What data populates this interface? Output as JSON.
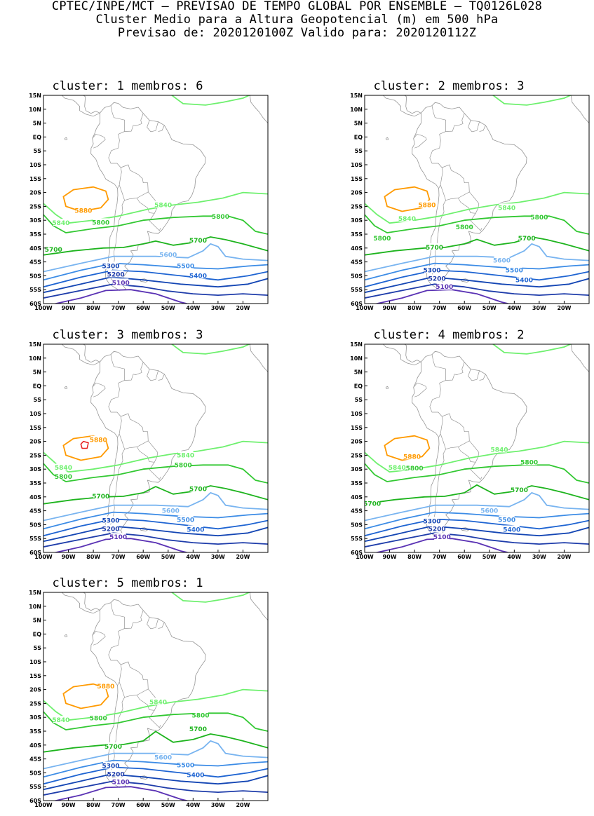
{
  "header": {
    "line1": "CPTEC/INPE/MCT – PREVISAO DE TEMPO GLOBAL POR ENSEMBLE – TQ0126L028",
    "line2": "Cluster Medio para a Altura Geopotencial (m) em 500 hPa",
    "line3": "Previsao de: 2020120100Z    Valido para: 2020120112Z"
  },
  "axes": {
    "lat_labels": [
      "15N",
      "10N",
      "5N",
      "EQ",
      "5S",
      "10S",
      "15S",
      "20S",
      "25S",
      "30S",
      "35S",
      "40S",
      "45S",
      "50S",
      "55S",
      "60S"
    ],
    "lon_labels": [
      "100W",
      "90W",
      "80W",
      "70W",
      "60W",
      "50W",
      "40W",
      "30W",
      "20W"
    ],
    "lat_range": [
      -60,
      15
    ],
    "lon_range": [
      -100,
      -10
    ]
  },
  "colors": {
    "c5880": "#ff9a00",
    "c5840": "#6ef06e",
    "c5800": "#32c832",
    "c5700": "#1eb41e",
    "c5600": "#78b4f0",
    "c5500": "#3c8ce6",
    "c5400": "#1e64d2",
    "c5300": "#1446b4",
    "c5200": "#1e3caa",
    "c5100": "#5a32b4",
    "inner": "#e61e1e",
    "land": "#969696"
  },
  "clusters": [
    {
      "title": "cluster: 1   membros: 6",
      "labels": [
        {
          "text": "5880",
          "lon": -84,
          "lat": -26.5,
          "c": "c5880"
        },
        {
          "text": "5840",
          "lon": -52,
          "lat": -24.5,
          "c": "c5840"
        },
        {
          "text": "5840",
          "lon": -93,
          "lat": -31,
          "c": "c5840"
        },
        {
          "text": "5800",
          "lon": -77,
          "lat": -30.8,
          "c": "c5800"
        },
        {
          "text": "5800",
          "lon": -29,
          "lat": -28.7,
          "c": "c5800"
        },
        {
          "text": "5700",
          "lon": -96,
          "lat": -40.5,
          "c": "c5700"
        },
        {
          "text": "5700",
          "lon": -38,
          "lat": -37.3,
          "c": "c5700"
        },
        {
          "text": "5600",
          "lon": -50,
          "lat": -42.5,
          "c": "c5600"
        },
        {
          "text": "5500",
          "lon": -43,
          "lat": -46.5,
          "c": "c5500"
        },
        {
          "text": "5400",
          "lon": -38,
          "lat": -50,
          "c": "c5400"
        },
        {
          "text": "5300",
          "lon": -73,
          "lat": -46.5,
          "c": "c5300"
        },
        {
          "text": "5200",
          "lon": -71,
          "lat": -49.5,
          "c": "c5200"
        },
        {
          "text": "5100",
          "lon": -69,
          "lat": -52.5,
          "c": "c5100"
        }
      ]
    },
    {
      "title": "cluster: 2   membros: 3",
      "labels": [
        {
          "text": "5880",
          "lon": -75,
          "lat": -24.5,
          "c": "c5880"
        },
        {
          "text": "5840",
          "lon": -43,
          "lat": -25.5,
          "c": "c5840"
        },
        {
          "text": "5840",
          "lon": -83,
          "lat": -29.5,
          "c": "c5840"
        },
        {
          "text": "5800",
          "lon": -93,
          "lat": -36.5,
          "c": "c5800"
        },
        {
          "text": "5800",
          "lon": -60,
          "lat": -32.5,
          "c": "c5800"
        },
        {
          "text": "5800",
          "lon": -30,
          "lat": -29,
          "c": "c5800"
        },
        {
          "text": "5700",
          "lon": -72,
          "lat": -39.8,
          "c": "c5700"
        },
        {
          "text": "5700",
          "lon": -35,
          "lat": -36.5,
          "c": "c5700"
        },
        {
          "text": "5600",
          "lon": -45,
          "lat": -44.5,
          "c": "c5600"
        },
        {
          "text": "5500",
          "lon": -40,
          "lat": -48,
          "c": "c5500"
        },
        {
          "text": "5400",
          "lon": -36,
          "lat": -51.5,
          "c": "c5400"
        },
        {
          "text": "5300",
          "lon": -73,
          "lat": -48,
          "c": "c5300"
        },
        {
          "text": "5200",
          "lon": -71,
          "lat": -51,
          "c": "c5200"
        },
        {
          "text": "5100",
          "lon": -68,
          "lat": -54,
          "c": "c5100"
        }
      ]
    },
    {
      "title": "cluster: 3   membros: 3",
      "labels": [
        {
          "text": "5880",
          "lon": -78,
          "lat": -19.5,
          "c": "c5880"
        },
        {
          "text": "5840",
          "lon": -43,
          "lat": -25,
          "c": "c5840"
        },
        {
          "text": "5840",
          "lon": -92,
          "lat": -29.5,
          "c": "c5840"
        },
        {
          "text": "5800",
          "lon": -92,
          "lat": -32.7,
          "c": "c5800"
        },
        {
          "text": "5800",
          "lon": -44,
          "lat": -28.5,
          "c": "c5800"
        },
        {
          "text": "5700",
          "lon": -77,
          "lat": -39.8,
          "c": "c5700"
        },
        {
          "text": "5700",
          "lon": -38,
          "lat": -37.2,
          "c": "c5700"
        },
        {
          "text": "5600",
          "lon": -49,
          "lat": -45,
          "c": "c5600"
        },
        {
          "text": "5500",
          "lon": -43,
          "lat": -48.3,
          "c": "c5500"
        },
        {
          "text": "5400",
          "lon": -39,
          "lat": -51.8,
          "c": "c5400"
        },
        {
          "text": "5300",
          "lon": -73,
          "lat": -48.5,
          "c": "c5300"
        },
        {
          "text": "5200",
          "lon": -73,
          "lat": -51.5,
          "c": "c5200"
        },
        {
          "text": "5100",
          "lon": -70,
          "lat": -54.5,
          "c": "c5100"
        }
      ]
    },
    {
      "title": "cluster: 4   membros: 2",
      "labels": [
        {
          "text": "5880",
          "lon": -81,
          "lat": -25.5,
          "c": "c5880"
        },
        {
          "text": "5840",
          "lon": -46,
          "lat": -23,
          "c": "c5840"
        },
        {
          "text": "5840",
          "lon": -87,
          "lat": -29.5,
          "c": "c5840"
        },
        {
          "text": "5800",
          "lon": -80,
          "lat": -29.7,
          "c": "c5800"
        },
        {
          "text": "5800",
          "lon": -34,
          "lat": -27.5,
          "c": "c5800"
        },
        {
          "text": "5700",
          "lon": -97,
          "lat": -42.5,
          "c": "c5700"
        },
        {
          "text": "5700",
          "lon": -38,
          "lat": -37.5,
          "c": "c5700"
        },
        {
          "text": "5600",
          "lon": -50,
          "lat": -45,
          "c": "c5600"
        },
        {
          "text": "5500",
          "lon": -43,
          "lat": -48.3,
          "c": "c5500"
        },
        {
          "text": "5400",
          "lon": -41,
          "lat": -51.8,
          "c": "c5400"
        },
        {
          "text": "5300",
          "lon": -73,
          "lat": -48.7,
          "c": "c5300"
        },
        {
          "text": "5200",
          "lon": -71,
          "lat": -51.5,
          "c": "c5200"
        },
        {
          "text": "5100",
          "lon": -69,
          "lat": -54.5,
          "c": "c5100"
        }
      ]
    },
    {
      "title": "cluster: 5   membros: 1",
      "labels": [
        {
          "text": "5880",
          "lon": -75,
          "lat": -18.8,
          "c": "c5880"
        },
        {
          "text": "5840",
          "lon": -54,
          "lat": -24.5,
          "c": "c5840"
        },
        {
          "text": "5840",
          "lon": -93,
          "lat": -31,
          "c": "c5840"
        },
        {
          "text": "5800",
          "lon": -78,
          "lat": -30.3,
          "c": "c5800"
        },
        {
          "text": "5800",
          "lon": -37,
          "lat": -29.3,
          "c": "c5800"
        },
        {
          "text": "5700",
          "lon": -72,
          "lat": -40.5,
          "c": "c5700"
        },
        {
          "text": "5700",
          "lon": -38,
          "lat": -34.3,
          "c": "c5700"
        },
        {
          "text": "5600",
          "lon": -52,
          "lat": -44.5,
          "c": "c5600"
        },
        {
          "text": "5500",
          "lon": -43,
          "lat": -47.3,
          "c": "c5500"
        },
        {
          "text": "5400",
          "lon": -39,
          "lat": -50.8,
          "c": "c5400"
        },
        {
          "text": "5300",
          "lon": -73,
          "lat": -47.5,
          "c": "c5300"
        },
        {
          "text": "5200",
          "lon": -71,
          "lat": -50.5,
          "c": "c5200"
        },
        {
          "text": "5100",
          "lon": -69,
          "lat": -53.3,
          "c": "c5100"
        }
      ]
    }
  ]
}
